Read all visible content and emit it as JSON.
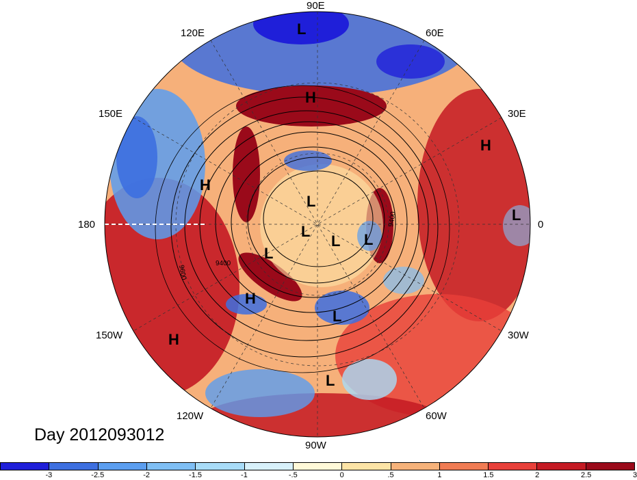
{
  "map": {
    "projection": "north-polar-stereographic",
    "background_anomaly_field": "warm-cold anomaly shading",
    "lon_labels": [
      "90E",
      "60E",
      "30E",
      "0",
      "30W",
      "60W",
      "90W",
      "120W",
      "150W",
      "180",
      "150E",
      "120E"
    ],
    "contour_labels": [
      "9400",
      "9600",
      "9400"
    ],
    "systems": [
      {
        "type": "L",
        "where": "top near 90E"
      },
      {
        "type": "H",
        "where": "upper-center"
      },
      {
        "type": "H",
        "where": "right 30E sector"
      },
      {
        "type": "H",
        "where": "left 160E sector"
      },
      {
        "type": "L",
        "where": "center polar upper"
      },
      {
        "type": "L",
        "where": "center polar mid"
      },
      {
        "type": "L",
        "where": "center polar right"
      },
      {
        "type": "L",
        "where": "center polar far right"
      },
      {
        "type": "L",
        "where": "center polar lower left"
      },
      {
        "type": "L",
        "where": "right edge near 0"
      },
      {
        "type": "H",
        "where": "lower-left 130W"
      },
      {
        "type": "L",
        "where": "lower-center 80W"
      },
      {
        "type": "H",
        "where": "far lower-left 150W"
      },
      {
        "type": "L",
        "where": "bottom 90W"
      }
    ]
  },
  "day_label": "Day 2012093012",
  "colorbar": {
    "colors": [
      "#1f1fd9",
      "#3d6fe0",
      "#5b9ef0",
      "#7fbff5",
      "#a8dcf8",
      "#d8f1fb",
      "#fff9d8",
      "#fde4a6",
      "#f6b27a",
      "#f07c54",
      "#e8403a",
      "#c41a23",
      "#9a0a1a"
    ],
    "tick_labels": [
      "-3",
      "-2.5",
      "-2",
      "-1.5",
      "-1",
      "-.5",
      "0",
      ".5",
      "1",
      "1.5",
      "2",
      "2.5",
      "3"
    ]
  }
}
